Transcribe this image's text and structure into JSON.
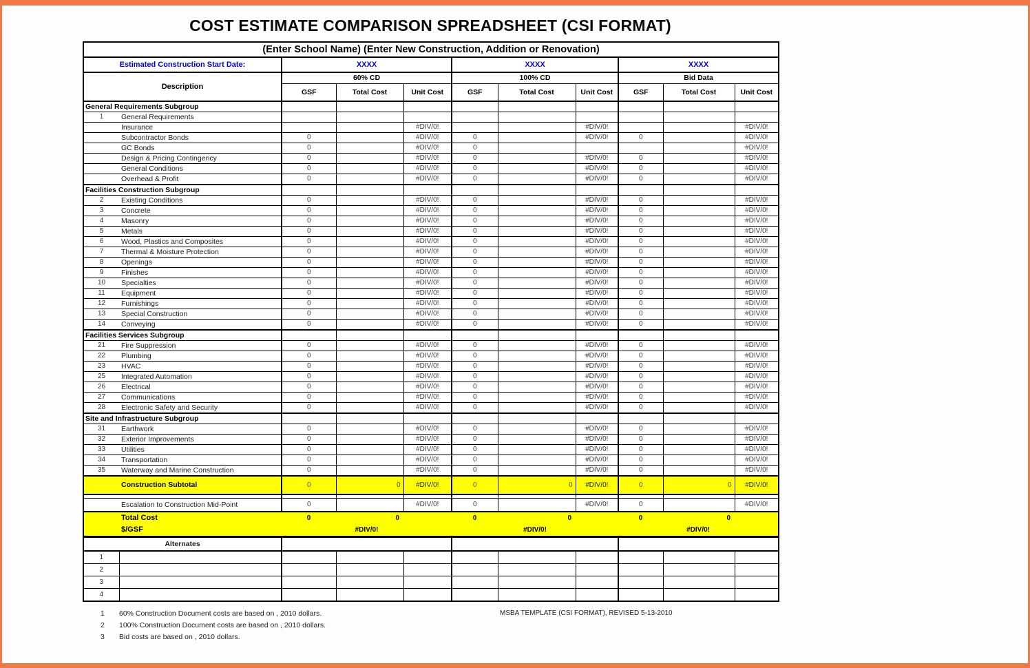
{
  "page": {
    "title": "COST ESTIMATE COMPARISON SPREADSHEET (CSI FORMAT)",
    "subtitle": "(Enter School Name) (Enter New Construction, Addition or Renovation)",
    "start_date_label": "Estimated Construction Start Date:",
    "start_date_value": "XXXX",
    "groups": [
      "60% CD",
      "100% CD",
      "Bid Data"
    ],
    "col_headers": [
      "GSF",
      "Total Cost",
      "Unit Cost"
    ],
    "description_header": "Description",
    "colors": {
      "frame_orange": "#ef7a48",
      "highlight_yellow": "#ffff00",
      "blue_text": "#0000dd"
    }
  },
  "sections": [
    {
      "title": "General Requirements Subgroup",
      "rows": [
        {
          "num": "1",
          "label": "General Requirements",
          "values": [
            "",
            "",
            "",
            "",
            "",
            "",
            "",
            "",
            ""
          ]
        },
        {
          "num": "",
          "label": "Insurance",
          "values": [
            "",
            "",
            "#DIV/0!",
            "",
            "",
            "#DIV/0!",
            "",
            "",
            "#DIV/0!"
          ]
        },
        {
          "num": "",
          "label": "Subcontractor Bonds",
          "values": [
            "0",
            "",
            "#DIV/0!",
            "0",
            "",
            "#DIV/0!",
            "0",
            "",
            "#DIV/0!"
          ]
        },
        {
          "num": "",
          "label": "GC Bonds",
          "values": [
            "0",
            "",
            "#DIV/0!",
            "0",
            "",
            "",
            "",
            "",
            "#DIV/0!"
          ]
        },
        {
          "num": "",
          "label": "Design & Pricing Contingency",
          "values": [
            "0",
            "",
            "#DIV/0!",
            "0",
            "",
            "#DIV/0!",
            "0",
            "",
            "#DIV/0!"
          ]
        },
        {
          "num": "",
          "label": "General Conditions",
          "values": [
            "0",
            "",
            "#DIV/0!",
            "0",
            "",
            "#DIV/0!",
            "0",
            "",
            "#DIV/0!"
          ]
        },
        {
          "num": "",
          "label": "Overhead & Profit",
          "values": [
            "0",
            "",
            "#DIV/0!",
            "0",
            "",
            "#DIV/0!",
            "0",
            "",
            "#DIV/0!"
          ]
        }
      ]
    },
    {
      "title": "Facilities Construction Subgroup",
      "rows": [
        {
          "num": "2",
          "label": "Existing Conditions",
          "values": [
            "0",
            "",
            "#DIV/0!",
            "0",
            "",
            "#DIV/0!",
            "0",
            "",
            "#DIV/0!"
          ]
        },
        {
          "num": "3",
          "label": "Concrete",
          "values": [
            "0",
            "",
            "#DIV/0!",
            "0",
            "",
            "#DIV/0!",
            "0",
            "",
            "#DIV/0!"
          ]
        },
        {
          "num": "4",
          "label": "Masonry",
          "values": [
            "0",
            "",
            "#DIV/0!",
            "0",
            "",
            "#DIV/0!",
            "0",
            "",
            "#DIV/0!"
          ]
        },
        {
          "num": "5",
          "label": "Metals",
          "values": [
            "0",
            "",
            "#DIV/0!",
            "0",
            "",
            "#DIV/0!",
            "0",
            "",
            "#DIV/0!"
          ]
        },
        {
          "num": "6",
          "label": "Wood, Plastics and Composites",
          "values": [
            "0",
            "",
            "#DIV/0!",
            "0",
            "",
            "#DIV/0!",
            "0",
            "",
            "#DIV/0!"
          ]
        },
        {
          "num": "7",
          "label": "Thermal & Moisture Protection",
          "values": [
            "0",
            "",
            "#DIV/0!",
            "0",
            "",
            "#DIV/0!",
            "0",
            "",
            "#DIV/0!"
          ]
        },
        {
          "num": "8",
          "label": "Openings",
          "values": [
            "0",
            "",
            "#DIV/0!",
            "0",
            "",
            "#DIV/0!",
            "0",
            "",
            "#DIV/0!"
          ]
        },
        {
          "num": "9",
          "label": "Finishes",
          "values": [
            "0",
            "",
            "#DIV/0!",
            "0",
            "",
            "#DIV/0!",
            "0",
            "",
            "#DIV/0!"
          ]
        },
        {
          "num": "10",
          "label": "Specialties",
          "values": [
            "0",
            "",
            "#DIV/0!",
            "0",
            "",
            "#DIV/0!",
            "0",
            "",
            "#DIV/0!"
          ]
        },
        {
          "num": "11",
          "label": "Equipment",
          "values": [
            "0",
            "",
            "#DIV/0!",
            "0",
            "",
            "#DIV/0!",
            "0",
            "",
            "#DIV/0!"
          ]
        },
        {
          "num": "12",
          "label": "Furnishings",
          "values": [
            "0",
            "",
            "#DIV/0!",
            "0",
            "",
            "#DIV/0!",
            "0",
            "",
            "#DIV/0!"
          ]
        },
        {
          "num": "13",
          "label": "Special Construction",
          "values": [
            "0",
            "",
            "#DIV/0!",
            "0",
            "",
            "#DIV/0!",
            "0",
            "",
            "#DIV/0!"
          ]
        },
        {
          "num": "14",
          "label": "Conveying",
          "values": [
            "0",
            "",
            "#DIV/0!",
            "0",
            "",
            "#DIV/0!",
            "0",
            "",
            "#DIV/0!"
          ]
        }
      ]
    },
    {
      "title": "Facilities Services Subgroup",
      "rows": [
        {
          "num": "21",
          "label": "Fire Suppression",
          "values": [
            "0",
            "",
            "#DIV/0!",
            "0",
            "",
            "#DIV/0!",
            "0",
            "",
            "#DIV/0!"
          ]
        },
        {
          "num": "22",
          "label": "Plumbing",
          "values": [
            "0",
            "",
            "#DIV/0!",
            "0",
            "",
            "#DIV/0!",
            "0",
            "",
            "#DIV/0!"
          ]
        },
        {
          "num": "23",
          "label": "HVAC",
          "values": [
            "0",
            "",
            "#DIV/0!",
            "0",
            "",
            "#DIV/0!",
            "0",
            "",
            "#DIV/0!"
          ]
        },
        {
          "num": "25",
          "label": "Integrated Automation",
          "values": [
            "0",
            "",
            "#DIV/0!",
            "0",
            "",
            "#DIV/0!",
            "0",
            "",
            "#DIV/0!"
          ]
        },
        {
          "num": "26",
          "label": "Electrical",
          "values": [
            "0",
            "",
            "#DIV/0!",
            "0",
            "",
            "#DIV/0!",
            "0",
            "",
            "#DIV/0!"
          ]
        },
        {
          "num": "27",
          "label": "Communications",
          "values": [
            "0",
            "",
            "#DIV/0!",
            "0",
            "",
            "#DIV/0!",
            "0",
            "",
            "#DIV/0!"
          ]
        },
        {
          "num": "28",
          "label": "Electronic Safety and Security",
          "values": [
            "0",
            "",
            "#DIV/0!",
            "0",
            "",
            "#DIV/0!",
            "0",
            "",
            "#DIV/0!"
          ]
        }
      ]
    },
    {
      "title": "Site and Infrastructure Subgroup",
      "rows": [
        {
          "num": "31",
          "label": "Earthwork",
          "values": [
            "0",
            "",
            "#DIV/0!",
            "0",
            "",
            "#DIV/0!",
            "0",
            "",
            "#DIV/0!"
          ]
        },
        {
          "num": "32",
          "label": "Exterior Improvements",
          "values": [
            "0",
            "",
            "#DIV/0!",
            "0",
            "",
            "#DIV/0!",
            "0",
            "",
            "#DIV/0!"
          ]
        },
        {
          "num": "33",
          "label": "Utilities",
          "values": [
            "0",
            "",
            "#DIV/0!",
            "0",
            "",
            "#DIV/0!",
            "0",
            "",
            "#DIV/0!"
          ]
        },
        {
          "num": "34",
          "label": "Transportation",
          "values": [
            "0",
            "",
            "#DIV/0!",
            "0",
            "",
            "#DIV/0!",
            "0",
            "",
            "#DIV/0!"
          ]
        },
        {
          "num": "35",
          "label": "Waterway and Marine Construction",
          "values": [
            "0",
            "",
            "#DIV/0!",
            "0",
            "",
            "#DIV/0!",
            "0",
            "",
            "#DIV/0!"
          ]
        }
      ]
    }
  ],
  "summary": {
    "construction_subtotal": {
      "label": "Construction Subtotal",
      "values": [
        "0",
        "0",
        "#DIV/0!",
        "0",
        "0",
        "#DIV/0!",
        "0",
        "0",
        "#DIV/0!"
      ]
    },
    "escalation": {
      "label": "Escalation to Construction Mid-Point",
      "values": [
        "0",
        "",
        "#DIV/0!",
        "0",
        "",
        "#DIV/0!",
        "0",
        "",
        "#DIV/0!"
      ]
    },
    "total_cost": {
      "label": "Total Cost",
      "values": [
        "0",
        "0",
        "",
        "0",
        "0",
        "",
        "0",
        "0",
        ""
      ]
    },
    "gsf_rate": {
      "label": "$/GSF",
      "values": [
        "#DIV/0!",
        "#DIV/0!",
        "#DIV/0!"
      ]
    }
  },
  "alternates": {
    "title": "Alternates",
    "row_numbers": [
      "1",
      "2",
      "3",
      "4"
    ]
  },
  "footnotes": [
    {
      "num": "1",
      "text": "60% Construction Document costs are based on  , 2010 dollars."
    },
    {
      "num": "2",
      "text": "100% Construction Document costs are based on  , 2010 dollars."
    },
    {
      "num": "3",
      "text": "Bid costs are based on  , 2010 dollars."
    }
  ],
  "template_note": "MSBA TEMPLATE (CSI FORMAT), REVISED  5-13-2010"
}
